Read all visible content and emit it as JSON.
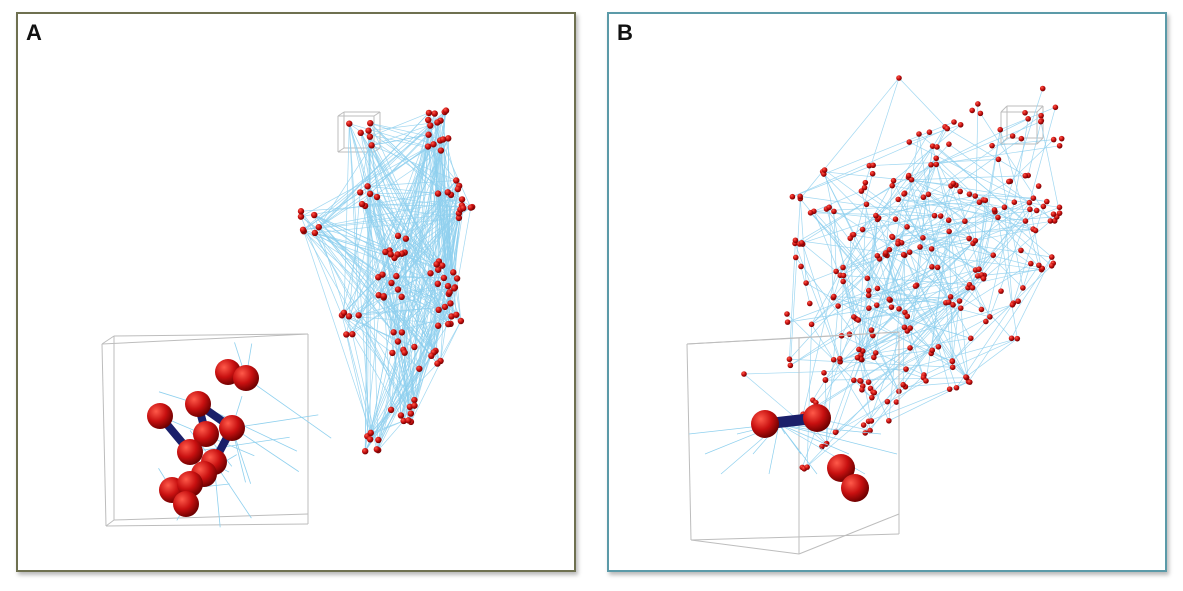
{
  "panels": [
    {
      "label": "A",
      "border_color": "#6e7050"
    },
    {
      "label": "B",
      "border_color": "#5b9aa8"
    }
  ],
  "colors": {
    "node": "#c81010",
    "node_highlight": "#ff5a4a",
    "node_shadow": "#6e0000",
    "edge": "#8fd0ee",
    "strong_edge": "#1a1f6a",
    "inset_box": "#bdbdbd"
  }
}
